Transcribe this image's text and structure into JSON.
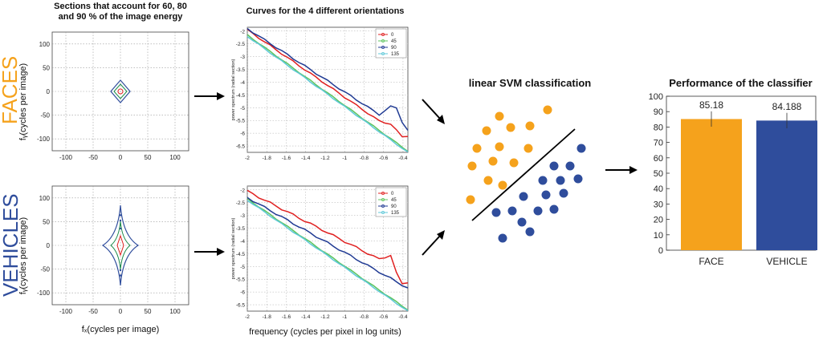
{
  "labels": {
    "faces": "FACES",
    "vehicles": "VEHICLES",
    "sections_title_line1": "Sections that account for 60, 80",
    "sections_title_line2": "and 90 % of the image energy",
    "curves_title": "Curves for the 4 different orientations",
    "svm_title": "linear SVM classification",
    "performance_title": "Performance of the classifier",
    "fy_ylabel": "fᵧ(cycles per image)",
    "fx_xlabel": "fₓ(cycles per image)",
    "power_ylabel": "power spectrum (radial section)",
    "frequency_xlabel": "frequency (cycles per pixel in log units)"
  },
  "colors": {
    "faces": "#f5a21c",
    "vehicles": "#2f4d9c",
    "red": "#e02020",
    "green": "#5cc45c",
    "blue": "#1f3a93",
    "cyan": "#5ec8d8"
  },
  "contour_plot": {
    "x_ticks": [
      "-100",
      "-50",
      "0",
      "50",
      "100"
    ],
    "y_ticks": [
      "100",
      "50",
      "0",
      "-50",
      "-100"
    ],
    "x_range": [
      -125,
      125
    ],
    "y_range": [
      -125,
      125
    ]
  },
  "spectrum_plot": {
    "x_ticks": [
      "-2",
      "-1.8",
      "-1.6",
      "-1.4",
      "-1.2",
      "-1",
      "-0.8",
      "-0.6",
      "-0.4"
    ],
    "y_ticks": [
      "-2",
      "-2.5",
      "-3",
      "-3.5",
      "-4",
      "-4.5",
      "-5",
      "-5.5",
      "-6",
      "-6.5"
    ],
    "legend": [
      "0",
      "45",
      "90",
      "135"
    ]
  },
  "chart_data": {
    "type": "bar",
    "title": "Performance of the classifier",
    "categories": [
      "FACE",
      "VEHICLE"
    ],
    "values": [
      85.18,
      84.188
    ],
    "value_labels": [
      "85.18",
      "84.188"
    ],
    "error": [
      5,
      5
    ],
    "ylim": [
      0,
      100
    ],
    "y_ticks": [
      "100",
      "90",
      "80",
      "70",
      "60",
      "50",
      "40",
      "30",
      "20",
      "10",
      "0"
    ],
    "xlabel": "",
    "ylabel": ""
  }
}
